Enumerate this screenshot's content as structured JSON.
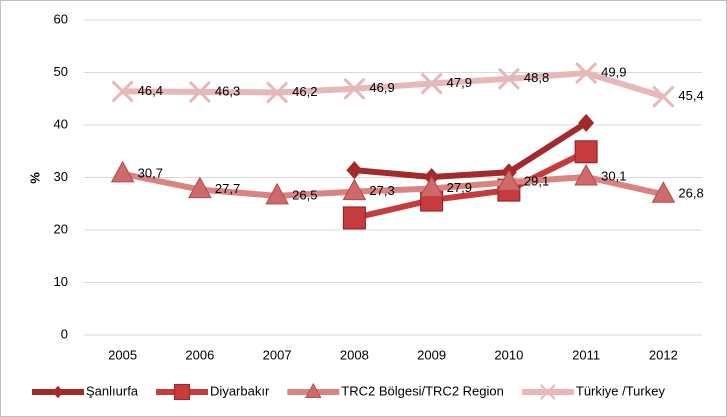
{
  "chart_data": {
    "type": "line",
    "y_label": "%",
    "categories": [
      "2005",
      "2006",
      "2007",
      "2008",
      "2009",
      "2010",
      "2011",
      "2012"
    ],
    "ylim": [
      0,
      60
    ],
    "yticks": [
      0,
      10,
      20,
      30,
      40,
      50,
      60
    ],
    "grid": true,
    "legend": "bottom",
    "series": [
      {
        "name": "Şanlıurfa",
        "color": "#a3292b",
        "marker": "diamond",
        "values": [
          null,
          null,
          null,
          31.4,
          30.1,
          31.0,
          40.4,
          null
        ]
      },
      {
        "name": "Diyarbakır",
        "color": "#c63b3d",
        "marker": "square",
        "values": [
          null,
          null,
          null,
          22.3,
          25.7,
          27.6,
          34.9,
          null
        ]
      },
      {
        "name": "TRC2 Bölgesi/TRC2 Region",
        "color": "#d98383",
        "marker": "triangle",
        "values": [
          30.7,
          27.7,
          26.5,
          27.3,
          27.9,
          29.1,
          30.1,
          26.8
        ],
        "value_labels": [
          "30,7",
          "27,7",
          "26,5",
          "27,3",
          "27,9",
          "29,1",
          "30,1",
          "26,8"
        ]
      },
      {
        "name": "Türkiye /Turkey",
        "color": "#e6b9b8",
        "marker": "x",
        "values": [
          46.4,
          46.3,
          46.2,
          46.9,
          47.9,
          48.8,
          49.9,
          45.4
        ],
        "value_labels": [
          "46,4",
          "46,3",
          "46,2",
          "46,9",
          "47,9",
          "48,8",
          "49,9",
          "45,4"
        ]
      }
    ]
  }
}
